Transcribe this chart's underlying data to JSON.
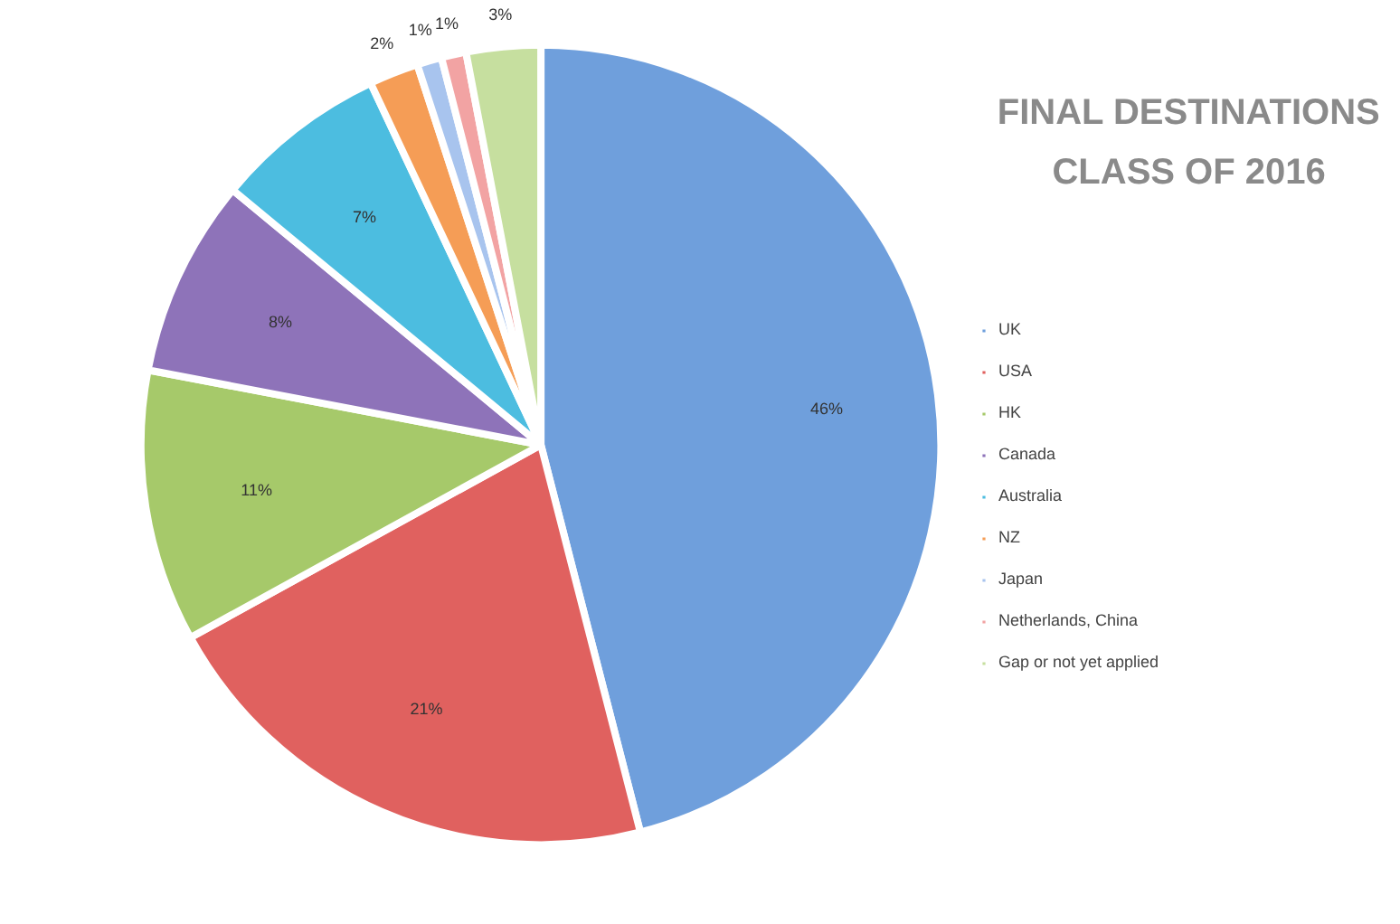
{
  "chart_data": {
    "type": "pie",
    "title": "FINAL DESTINATIONS\nCLASS OF 2016",
    "categories": [
      "UK",
      "USA",
      "HK",
      "Canada",
      "Australia",
      "NZ",
      "Japan",
      "Netherlands, China",
      "Gap or not yet applied"
    ],
    "values": [
      46,
      21,
      11,
      8,
      7,
      2,
      1,
      1,
      3
    ],
    "colors": [
      "#6f9fdc",
      "#e0615f",
      "#a6c96a",
      "#8e73b9",
      "#4cbde0",
      "#f59d56",
      "#a8c4ee",
      "#f2a3a3",
      "#c6df9f"
    ],
    "value_labels": [
      "46%",
      "21%",
      "11%",
      "8%",
      "7%",
      "2%",
      "1%",
      "1%",
      "3%"
    ],
    "legend": "right"
  }
}
